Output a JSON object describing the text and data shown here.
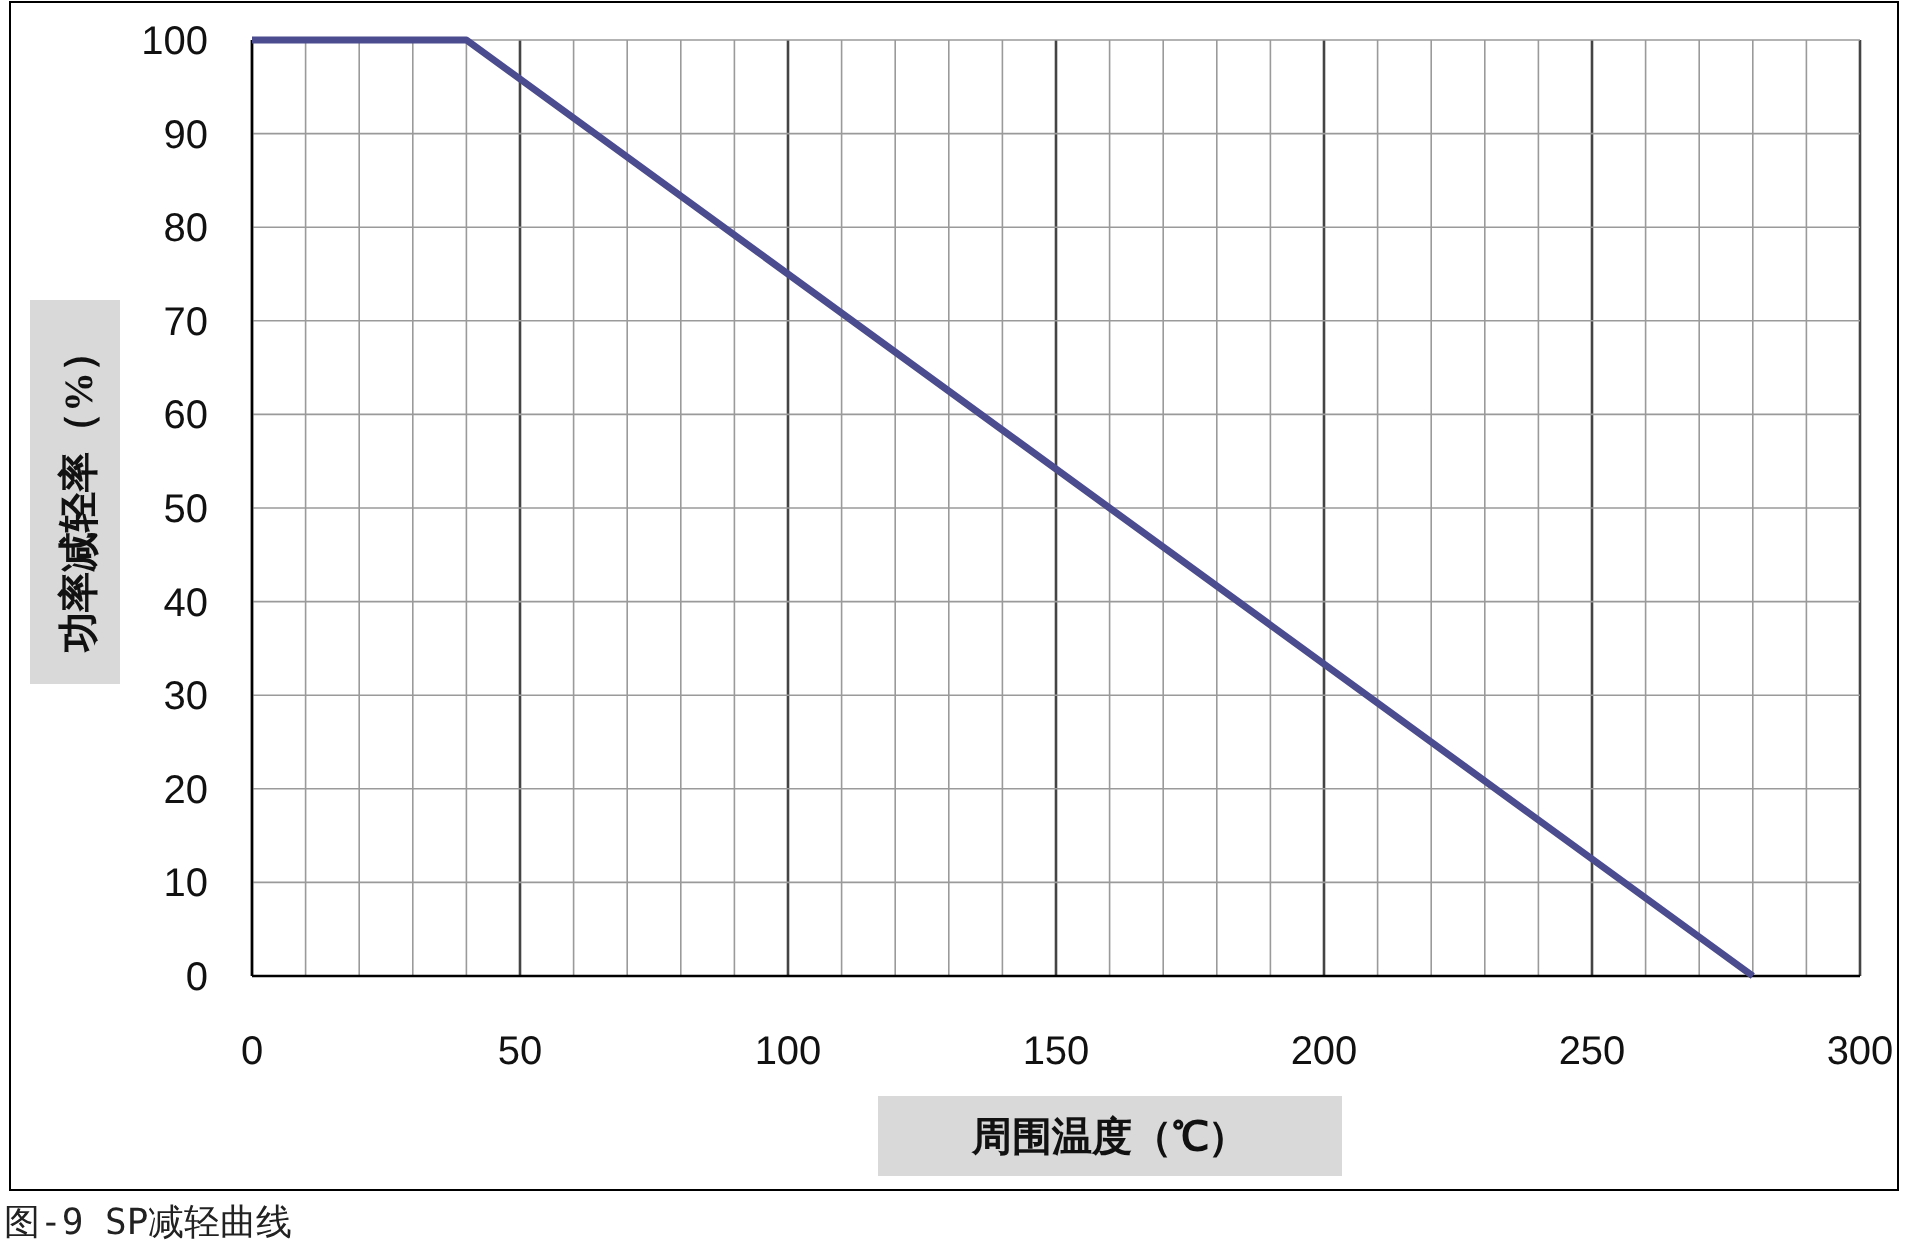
{
  "chart_data": {
    "type": "line",
    "xlabel": "周围温度（℃）",
    "ylabel": "功率减轻率（%）",
    "annotations": [
      "图-9 SP减轻曲线"
    ],
    "x": [
      0,
      40,
      280
    ],
    "series": [
      {
        "color": "#4b4b8f",
        "values": [
          100,
          100,
          0
        ]
      }
    ],
    "xlim": [
      0,
      300
    ],
    "ylim": [
      0,
      100
    ],
    "xticks": [
      0,
      {
        "value": 10,
        "label": null
      },
      {
        "value": 20,
        "label": null
      },
      {
        "value": 30,
        "label": null
      },
      {
        "value": 40,
        "label": null
      },
      50,
      {
        "value": 60,
        "label": null
      },
      {
        "value": 70,
        "label": null
      },
      {
        "value": 80,
        "label": null
      },
      {
        "value": 90,
        "label": null
      },
      100,
      {
        "value": 110,
        "label": null
      },
      {
        "value": 120,
        "label": null
      },
      {
        "value": 130,
        "label": null
      },
      {
        "value": 140,
        "label": null
      },
      150,
      {
        "value": 160,
        "label": null
      },
      {
        "value": 170,
        "label": null
      },
      {
        "value": 180,
        "label": null
      },
      {
        "value": 190,
        "label": null
      },
      200,
      {
        "value": 210,
        "label": null
      },
      {
        "value": 220,
        "label": null
      },
      {
        "value": 230,
        "label": null
      },
      {
        "value": 240,
        "label": null
      },
      250,
      {
        "value": 260,
        "label": null
      },
      {
        "value": 270,
        "label": null
      },
      {
        "value": 280,
        "label": null
      },
      {
        "value": 290,
        "label": null
      },
      300
    ],
    "yticks": [
      0,
      10,
      20,
      30,
      40,
      50,
      60,
      70,
      80,
      90,
      100
    ],
    "grid": true,
    "marker": "none",
    "line_style": "solid"
  }
}
